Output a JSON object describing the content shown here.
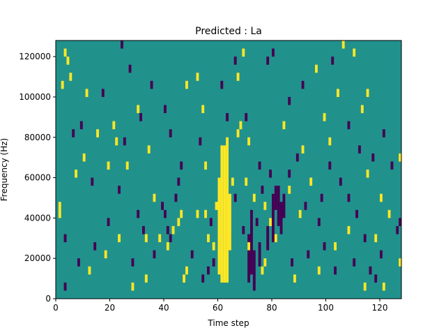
{
  "chart_data": {
    "type": "heatmap",
    "title": "Predicted : La",
    "xlabel": "Time step",
    "ylabel": "Frequency (Hz)",
    "xlim": [
      0,
      128
    ],
    "ylim": [
      0,
      128000
    ],
    "x_ticks": [
      0,
      20,
      40,
      60,
      80,
      100,
      120
    ],
    "x_tick_labels": [
      "0",
      "20",
      "40",
      "60",
      "80",
      "100",
      "120"
    ],
    "y_ticks": [
      0,
      20000,
      40000,
      60000,
      80000,
      100000,
      120000
    ],
    "y_tick_labels": [
      "0",
      "20000",
      "40000",
      "60000",
      "80000",
      "100000",
      "120000"
    ],
    "grid": false,
    "colormap": "viridis",
    "colors": {
      "background": "#21918c",
      "high": "#fde725",
      "low": "#440154"
    },
    "bin_height": 4000,
    "yellow_cells": [
      [
        61,
        8000,
        72000
      ],
      [
        62,
        8000,
        72000
      ],
      [
        63,
        8000,
        76000
      ],
      [
        64,
        24000,
        48000
      ],
      [
        60,
        12000,
        56000
      ],
      [
        1,
        40000
      ],
      [
        1,
        44000
      ],
      [
        3,
        120000
      ],
      [
        4,
        116000
      ],
      [
        5,
        108000
      ],
      [
        2,
        104000
      ],
      [
        11,
        100000
      ],
      [
        21,
        84000
      ],
      [
        15,
        80000
      ],
      [
        22,
        76000
      ],
      [
        10,
        68000
      ],
      [
        26,
        64000
      ],
      [
        34,
        72000
      ],
      [
        33,
        28000
      ],
      [
        38,
        28000
      ],
      [
        41,
        24000
      ],
      [
        43,
        32000
      ],
      [
        45,
        36000
      ],
      [
        46,
        40000
      ],
      [
        47,
        8000
      ],
      [
        48,
        12000
      ],
      [
        52,
        40000
      ],
      [
        55,
        40000
      ],
      [
        56,
        28000
      ],
      [
        48,
        104000
      ],
      [
        52,
        108000
      ],
      [
        54,
        92000
      ],
      [
        55,
        64000
      ],
      [
        67,
        80000
      ],
      [
        68,
        84000
      ],
      [
        70,
        56000
      ],
      [
        73,
        48000
      ],
      [
        77,
        44000
      ],
      [
        79,
        36000
      ],
      [
        86,
        52000
      ],
      [
        90,
        40000
      ],
      [
        94,
        56000
      ],
      [
        101,
        76000
      ],
      [
        104,
        100000
      ],
      [
        106,
        124000
      ],
      [
        110,
        120000
      ],
      [
        113,
        92000
      ],
      [
        115,
        60000
      ],
      [
        120,
        48000
      ],
      [
        123,
        40000
      ],
      [
        127,
        16000
      ],
      [
        127,
        68000
      ],
      [
        12,
        12000
      ],
      [
        18,
        20000
      ],
      [
        23,
        28000
      ],
      [
        28,
        4000
      ],
      [
        33,
        8000
      ],
      [
        71,
        24000
      ],
      [
        76,
        12000
      ],
      [
        81,
        28000
      ],
      [
        88,
        8000
      ],
      [
        97,
        12000
      ],
      [
        103,
        24000
      ],
      [
        108,
        32000
      ],
      [
        118,
        28000
      ],
      [
        121,
        4000
      ],
      [
        114,
        4000
      ],
      [
        67,
        108000
      ],
      [
        71,
        76000
      ],
      [
        77,
        16000
      ],
      [
        59,
        44000
      ],
      [
        58,
        24000
      ],
      [
        65,
        56000
      ],
      [
        96,
        112000
      ],
      [
        84,
        84000
      ],
      [
        7,
        60000
      ],
      [
        30,
        92000
      ],
      [
        19,
        64000
      ],
      [
        115,
        100000
      ],
      [
        69,
        120000
      ],
      [
        91,
        72000
      ],
      [
        99,
        88000
      ],
      [
        36,
        48000
      ]
    ],
    "purple_cells": [
      [
        71,
        8000,
        28000
      ],
      [
        72,
        12000,
        40000
      ],
      [
        73,
        4000,
        20000
      ],
      [
        82,
        36000,
        52000
      ],
      [
        83,
        32000,
        44000
      ],
      [
        84,
        40000,
        48000
      ],
      [
        80,
        28000,
        48000
      ],
      [
        81,
        44000,
        52000
      ],
      [
        78,
        24000,
        32000
      ],
      [
        75,
        16000,
        24000
      ],
      [
        24,
        124000
      ],
      [
        27,
        112000
      ],
      [
        9,
        84000
      ],
      [
        17,
        100000
      ],
      [
        25,
        76000
      ],
      [
        31,
        88000
      ],
      [
        35,
        104000
      ],
      [
        40,
        92000
      ],
      [
        42,
        80000
      ],
      [
        45,
        56000
      ],
      [
        39,
        44000
      ],
      [
        40,
        40000
      ],
      [
        41,
        32000
      ],
      [
        42,
        28000
      ],
      [
        44,
        48000
      ],
      [
        50,
        20000
      ],
      [
        54,
        8000
      ],
      [
        56,
        12000
      ],
      [
        58,
        16000
      ],
      [
        46,
        64000
      ],
      [
        53,
        76000
      ],
      [
        63,
        88000
      ],
      [
        70,
        88000
      ],
      [
        75,
        64000
      ],
      [
        69,
        32000
      ],
      [
        66,
        48000
      ],
      [
        76,
        52000
      ],
      [
        79,
        60000
      ],
      [
        86,
        60000
      ],
      [
        89,
        68000
      ],
      [
        92,
        44000
      ],
      [
        97,
        36000
      ],
      [
        99,
        24000
      ],
      [
        101,
        64000
      ],
      [
        105,
        56000
      ],
      [
        108,
        48000
      ],
      [
        111,
        40000
      ],
      [
        114,
        28000
      ],
      [
        116,
        12000
      ],
      [
        118,
        8000
      ],
      [
        120,
        20000
      ],
      [
        3,
        28000
      ],
      [
        8,
        16000
      ],
      [
        14,
        24000
      ],
      [
        19,
        36000
      ],
      [
        23,
        52000
      ],
      [
        28,
        16000
      ],
      [
        32,
        32000
      ],
      [
        36,
        20000
      ],
      [
        61,
        104000
      ],
      [
        80,
        120000
      ],
      [
        86,
        96000
      ],
      [
        91,
        104000
      ],
      [
        102,
        116000
      ],
      [
        108,
        84000
      ],
      [
        112,
        72000
      ],
      [
        124,
        64000
      ],
      [
        126,
        32000
      ],
      [
        127,
        36000
      ],
      [
        3,
        4000
      ],
      [
        6,
        80000
      ],
      [
        13,
        56000
      ],
      [
        30,
        40000
      ],
      [
        57,
        36000
      ],
      [
        64,
        28000
      ],
      [
        74,
        36000
      ],
      [
        87,
        16000
      ],
      [
        93,
        20000
      ],
      [
        103,
        12000
      ],
      [
        110,
        16000
      ],
      [
        117,
        68000
      ],
      [
        121,
        80000
      ],
      [
        98,
        48000
      ],
      [
        78,
        116000
      ],
      [
        66,
        116000
      ]
    ]
  }
}
